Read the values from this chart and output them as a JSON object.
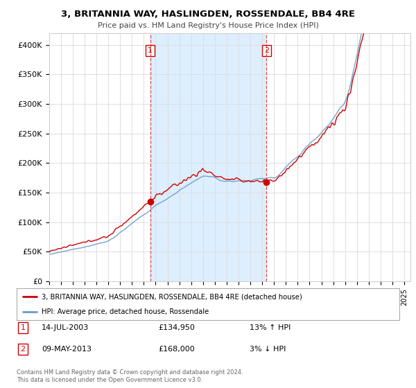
{
  "title": "3, BRITANNIA WAY, HASLINGDEN, ROSSENDALE, BB4 4RE",
  "subtitle": "Price paid vs. HM Land Registry's House Price Index (HPI)",
  "ylabel_ticks": [
    "£0",
    "£50K",
    "£100K",
    "£150K",
    "£200K",
    "£250K",
    "£300K",
    "£350K",
    "£400K"
  ],
  "ytick_values": [
    0,
    50000,
    100000,
    150000,
    200000,
    250000,
    300000,
    350000,
    400000
  ],
  "ylim": [
    0,
    420000
  ],
  "xlim_start": 1995.0,
  "xlim_end": 2025.5,
  "transaction1": {
    "label": "1",
    "date": "14-JUL-2003",
    "price": 134950,
    "hpi_change": "13% ↑ HPI",
    "x": 2003.54
  },
  "transaction2": {
    "label": "2",
    "date": "09-MAY-2013",
    "price": 168000,
    "hpi_change": "3% ↓ HPI",
    "x": 2013.37
  },
  "legend_line1": "3, BRITANNIA WAY, HASLINGDEN, ROSSENDALE, BB4 4RE (detached house)",
  "legend_line2": "HPI: Average price, detached house, Rossendale",
  "footer": "Contains HM Land Registry data © Crown copyright and database right 2024.\nThis data is licensed under the Open Government Licence v3.0.",
  "red_color": "#cc0000",
  "blue_color": "#6699cc",
  "shade_color": "#ddeeff",
  "background_color": "#ffffff",
  "grid_color": "#dddddd"
}
